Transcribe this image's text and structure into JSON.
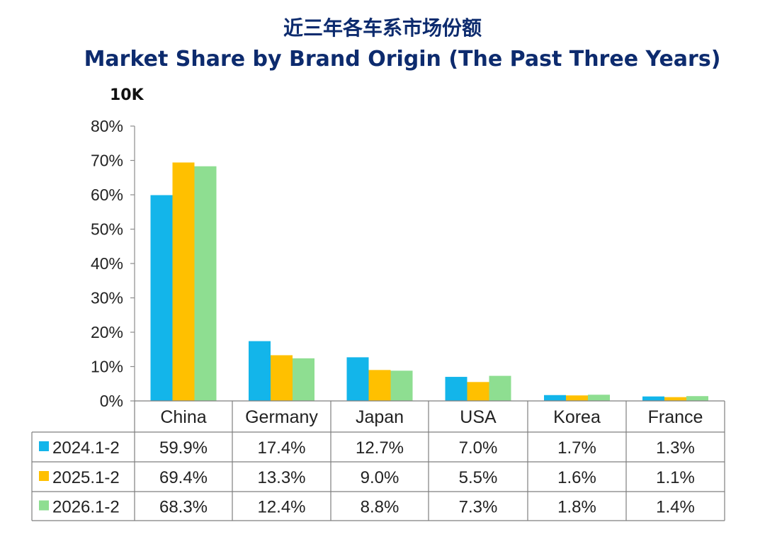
{
  "titles": {
    "cn": "近三年各车系市场份额",
    "en": "Market Share by Brand Origin (The Past Three Years)"
  },
  "unit_label": "10K",
  "colors": {
    "title": "#0d2b6e",
    "series": [
      "#13b5ea",
      "#ffc000",
      "#8ede91"
    ]
  },
  "chart_data": {
    "type": "bar",
    "categories": [
      "China",
      "Germany",
      "Japan",
      "USA",
      "Korea",
      "France"
    ],
    "series": [
      {
        "name": "2024.1-2",
        "values": [
          59.9,
          17.4,
          12.7,
          7.0,
          1.7,
          1.3
        ]
      },
      {
        "name": "2025.1-2",
        "values": [
          69.4,
          13.3,
          9.0,
          5.5,
          1.6,
          1.1
        ]
      },
      {
        "name": "2026.1-2",
        "values": [
          68.3,
          12.4,
          8.8,
          7.3,
          1.8,
          1.4
        ]
      }
    ],
    "table_values": [
      [
        "59.9%",
        "17.4%",
        "12.7%",
        "7.0%",
        "1.7%",
        "1.3%"
      ],
      [
        "69.4%",
        "13.3%",
        "9.0%",
        "5.5%",
        "1.6%",
        "1.1%"
      ],
      [
        "68.3%",
        "12.4%",
        "8.8%",
        "7.3%",
        "1.8%",
        "1.4%"
      ]
    ],
    "yticks": [
      "0%",
      "10%",
      "20%",
      "30%",
      "40%",
      "50%",
      "60%",
      "70%",
      "80%"
    ],
    "ylim": [
      0,
      80
    ],
    "grid": false,
    "legend": "data-table-below"
  }
}
